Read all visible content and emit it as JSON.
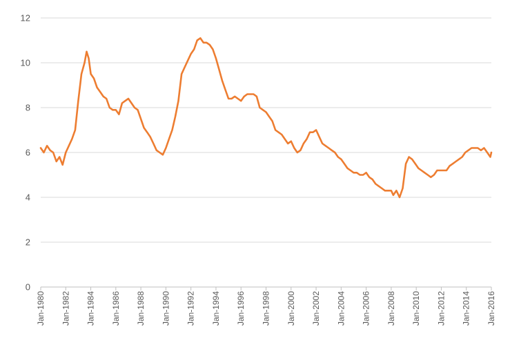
{
  "chart_data": {
    "type": "line",
    "title": "",
    "xlabel": "",
    "ylabel": "",
    "ylim": [
      0,
      12
    ],
    "y_ticks": [
      "0",
      "2",
      "4",
      "6",
      "8",
      "10",
      "12"
    ],
    "x_ticks": [
      "Jan-1980",
      "Jan-1982",
      "Jan-1984",
      "Jan-1986",
      "Jan-1988",
      "Jan-1990",
      "Jan-1992",
      "Jan-1994",
      "Jan-1996",
      "Jan-1998",
      "Jan-2000",
      "Jan-2002",
      "Jan-2004",
      "Jan-2006",
      "Jan-2008",
      "Jan-2010",
      "Jan-2012",
      "Jan-2014",
      "Jan-2016"
    ],
    "grid": true,
    "legend": "none",
    "series": [
      {
        "color": "#ED7D31",
        "points": [
          [
            "1980-01",
            6.2
          ],
          [
            "1980-04",
            6.0
          ],
          [
            "1980-07",
            6.3
          ],
          [
            "1980-10",
            6.1
          ],
          [
            "1981-01",
            6.0
          ],
          [
            "1981-04",
            5.6
          ],
          [
            "1981-07",
            5.8
          ],
          [
            "1981-10",
            5.45
          ],
          [
            "1982-01",
            6.0
          ],
          [
            "1982-04",
            6.3
          ],
          [
            "1982-07",
            6.6
          ],
          [
            "1982-10",
            7.0
          ],
          [
            "1983-01",
            8.3
          ],
          [
            "1983-04",
            9.5
          ],
          [
            "1983-07",
            10.0
          ],
          [
            "1983-09",
            10.5
          ],
          [
            "1983-11",
            10.2
          ],
          [
            "1984-01",
            9.5
          ],
          [
            "1984-04",
            9.3
          ],
          [
            "1984-07",
            8.9
          ],
          [
            "1984-10",
            8.7
          ],
          [
            "1985-01",
            8.5
          ],
          [
            "1985-04",
            8.4
          ],
          [
            "1985-07",
            8.0
          ],
          [
            "1985-10",
            7.9
          ],
          [
            "1986-01",
            7.9
          ],
          [
            "1986-04",
            7.7
          ],
          [
            "1986-07",
            8.2
          ],
          [
            "1986-10",
            8.3
          ],
          [
            "1987-01",
            8.4
          ],
          [
            "1987-04",
            8.2
          ],
          [
            "1987-07",
            8.0
          ],
          [
            "1987-10",
            7.9
          ],
          [
            "1988-01",
            7.5
          ],
          [
            "1988-04",
            7.1
          ],
          [
            "1988-07",
            6.9
          ],
          [
            "1988-10",
            6.7
          ],
          [
            "1989-01",
            6.4
          ],
          [
            "1989-04",
            6.1
          ],
          [
            "1989-07",
            6.0
          ],
          [
            "1989-10",
            5.9
          ],
          [
            "1990-01",
            6.2
          ],
          [
            "1990-04",
            6.6
          ],
          [
            "1990-07",
            7.0
          ],
          [
            "1990-10",
            7.6
          ],
          [
            "1991-01",
            8.3
          ],
          [
            "1991-04",
            9.5
          ],
          [
            "1991-07",
            9.8
          ],
          [
            "1991-10",
            10.1
          ],
          [
            "1992-01",
            10.4
          ],
          [
            "1992-04",
            10.6
          ],
          [
            "1992-07",
            11.0
          ],
          [
            "1992-10",
            11.1
          ],
          [
            "1993-01",
            10.9
          ],
          [
            "1993-04",
            10.9
          ],
          [
            "1993-07",
            10.8
          ],
          [
            "1993-10",
            10.6
          ],
          [
            "1994-01",
            10.2
          ],
          [
            "1994-04",
            9.7
          ],
          [
            "1994-07",
            9.2
          ],
          [
            "1994-10",
            8.8
          ],
          [
            "1995-01",
            8.4
          ],
          [
            "1995-04",
            8.4
          ],
          [
            "1995-07",
            8.5
          ],
          [
            "1995-10",
            8.4
          ],
          [
            "1996-01",
            8.3
          ],
          [
            "1996-04",
            8.5
          ],
          [
            "1996-07",
            8.6
          ],
          [
            "1996-10",
            8.6
          ],
          [
            "1997-01",
            8.6
          ],
          [
            "1997-04",
            8.5
          ],
          [
            "1997-07",
            8.0
          ],
          [
            "1997-10",
            7.9
          ],
          [
            "1998-01",
            7.8
          ],
          [
            "1998-04",
            7.6
          ],
          [
            "1998-07",
            7.4
          ],
          [
            "1998-10",
            7.0
          ],
          [
            "1999-01",
            6.9
          ],
          [
            "1999-04",
            6.8
          ],
          [
            "1999-07",
            6.6
          ],
          [
            "1999-10",
            6.4
          ],
          [
            "2000-01",
            6.5
          ],
          [
            "2000-04",
            6.2
          ],
          [
            "2000-07",
            6.0
          ],
          [
            "2000-10",
            6.1
          ],
          [
            "2001-01",
            6.4
          ],
          [
            "2001-04",
            6.6
          ],
          [
            "2001-07",
            6.9
          ],
          [
            "2001-10",
            6.9
          ],
          [
            "2002-01",
            7.0
          ],
          [
            "2002-04",
            6.7
          ],
          [
            "2002-07",
            6.4
          ],
          [
            "2002-10",
            6.3
          ],
          [
            "2003-01",
            6.2
          ],
          [
            "2003-04",
            6.1
          ],
          [
            "2003-07",
            6.0
          ],
          [
            "2003-10",
            5.8
          ],
          [
            "2004-01",
            5.7
          ],
          [
            "2004-04",
            5.5
          ],
          [
            "2004-07",
            5.3
          ],
          [
            "2004-10",
            5.2
          ],
          [
            "2005-01",
            5.1
          ],
          [
            "2005-04",
            5.1
          ],
          [
            "2005-07",
            5.0
          ],
          [
            "2005-10",
            5.0
          ],
          [
            "2006-01",
            5.1
          ],
          [
            "2006-04",
            4.9
          ],
          [
            "2006-07",
            4.8
          ],
          [
            "2006-10",
            4.6
          ],
          [
            "2007-01",
            4.5
          ],
          [
            "2007-04",
            4.4
          ],
          [
            "2007-07",
            4.3
          ],
          [
            "2007-10",
            4.3
          ],
          [
            "2008-01",
            4.3
          ],
          [
            "2008-03",
            4.1
          ],
          [
            "2008-06",
            4.3
          ],
          [
            "2008-09",
            4.0
          ],
          [
            "2008-12",
            4.4
          ],
          [
            "2009-03",
            5.5
          ],
          [
            "2009-06",
            5.8
          ],
          [
            "2009-09",
            5.7
          ],
          [
            "2009-12",
            5.5
          ],
          [
            "2010-03",
            5.3
          ],
          [
            "2010-06",
            5.2
          ],
          [
            "2010-09",
            5.1
          ],
          [
            "2010-12",
            5.0
          ],
          [
            "2011-03",
            4.9
          ],
          [
            "2011-06",
            5.0
          ],
          [
            "2011-09",
            5.2
          ],
          [
            "2011-12",
            5.2
          ],
          [
            "2012-03",
            5.2
          ],
          [
            "2012-06",
            5.2
          ],
          [
            "2012-09",
            5.4
          ],
          [
            "2012-12",
            5.5
          ],
          [
            "2013-03",
            5.6
          ],
          [
            "2013-06",
            5.7
          ],
          [
            "2013-09",
            5.8
          ],
          [
            "2013-12",
            6.0
          ],
          [
            "2014-03",
            6.1
          ],
          [
            "2014-06",
            6.2
          ],
          [
            "2014-09",
            6.2
          ],
          [
            "2014-12",
            6.2
          ],
          [
            "2015-03",
            6.1
          ],
          [
            "2015-06",
            6.2
          ],
          [
            "2015-09",
            6.0
          ],
          [
            "2015-12",
            5.8
          ],
          [
            "2016-01",
            6.0
          ]
        ]
      }
    ]
  }
}
